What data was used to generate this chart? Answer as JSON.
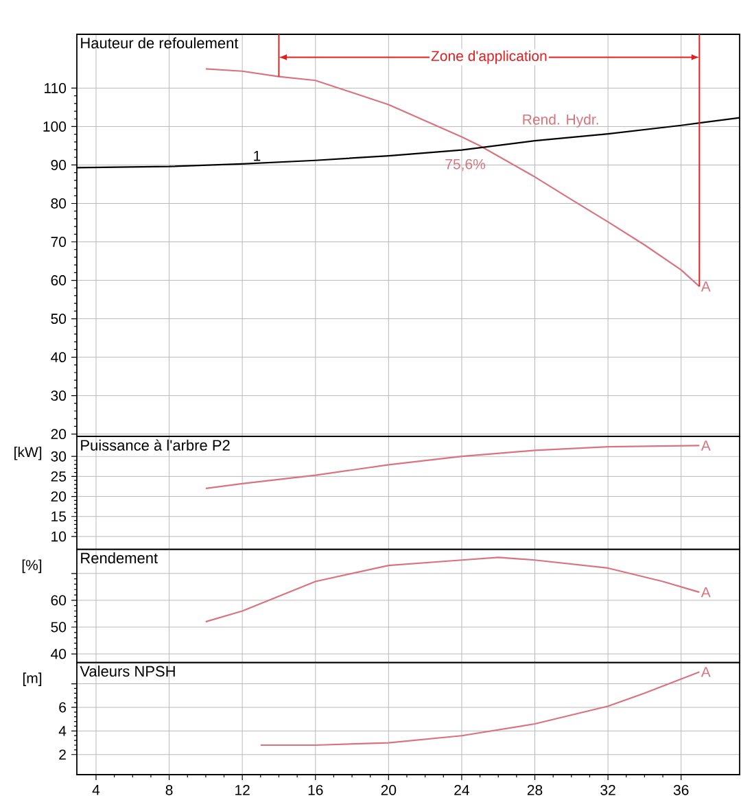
{
  "chart_data": [
    {
      "type": "line",
      "title": "Hauteur de refoulement",
      "xlim": [
        2.95,
        39.2
      ],
      "xticks": [
        4,
        8,
        12,
        16,
        20,
        24,
        28,
        32,
        36
      ],
      "ylim": [
        19.4,
        124
      ],
      "yticks": [
        20,
        30,
        40,
        50,
        60,
        70,
        80,
        90,
        100,
        110
      ],
      "grid": true,
      "tick_labels": "y",
      "series": [
        {
          "name": "A",
          "color": "#d9737f",
          "x": [
            10,
            12,
            14,
            16,
            20,
            24,
            25,
            28,
            30,
            32,
            34,
            36,
            37
          ],
          "values": [
            115,
            114.4,
            113,
            112,
            105.7,
            97.3,
            95,
            86.9,
            81,
            75.2,
            69.2,
            62.7,
            58.4
          ]
        },
        {
          "name": "1",
          "color": "#000000",
          "x": [
            2.95,
            8,
            12,
            16,
            20,
            24,
            28,
            32,
            36,
            39.2
          ],
          "values": [
            89.3,
            89.6,
            90.3,
            91.2,
            92.4,
            93.9,
            96.3,
            98.1,
            100.3,
            102.3
          ]
        }
      ],
      "ref_lines": [
        {
          "axis": "x",
          "value": 14,
          "color": "#e02020"
        },
        {
          "axis": "x",
          "value": 37,
          "color": "#e02020"
        }
      ],
      "annotations": [
        "Zone d'application",
        "Rend. Hydr.",
        "75,6%"
      ]
    },
    {
      "type": "line",
      "title": "Puissance à l'arbre P2",
      "ylabel": "[kW]",
      "xlim": [
        2.95,
        39.2
      ],
      "xticks": [
        4,
        8,
        12,
        16,
        20,
        24,
        28,
        32,
        36
      ],
      "ylim": [
        6.8,
        35
      ],
      "yticks": [
        10,
        15,
        20,
        25,
        30
      ],
      "grid": true,
      "tick_labels": "y",
      "series": [
        {
          "name": "A",
          "color": "#d9737f",
          "x": [
            10,
            12,
            16,
            20,
            24,
            28,
            32,
            37
          ],
          "values": [
            22,
            23.2,
            25.3,
            27.9,
            30,
            31.5,
            32.4,
            32.7
          ]
        }
      ]
    },
    {
      "type": "line",
      "title": "Rendement",
      "ylabel": "[%]",
      "xlim": [
        2.95,
        39.2
      ],
      "xticks": [
        4,
        8,
        12,
        16,
        20,
        24,
        28,
        32,
        36
      ],
      "ylim": [
        36.8,
        79
      ],
      "yticks": [
        40,
        50,
        60,
        {
          "value": 70,
          "label": null
        }
      ],
      "grid": true,
      "tick_labels": "y",
      "series": [
        {
          "name": "A",
          "color": "#d9737f",
          "x": [
            10,
            12,
            16,
            20,
            24,
            26,
            28,
            32,
            35,
            37
          ],
          "values": [
            52,
            56,
            67,
            73,
            75,
            76,
            75,
            72,
            67,
            63
          ]
        }
      ]
    },
    {
      "type": "line",
      "title": "Valeurs NPSH",
      "ylabel": "[m]",
      "xlim": [
        2.95,
        39.2
      ],
      "xticks": [
        4,
        8,
        12,
        16,
        20,
        24,
        28,
        32,
        36
      ],
      "ylim": [
        0.3,
        9.8
      ],
      "yticks": [
        2,
        4,
        6,
        {
          "value": 8,
          "label": null
        }
      ],
      "grid": true,
      "series": [
        {
          "name": "A",
          "color": "#d9737f",
          "x": [
            13,
            16,
            20,
            24,
            28,
            32,
            34,
            37
          ],
          "values": [
            2.8,
            2.8,
            3,
            3.6,
            4.6,
            6.1,
            7.2,
            9
          ]
        }
      ]
    }
  ]
}
